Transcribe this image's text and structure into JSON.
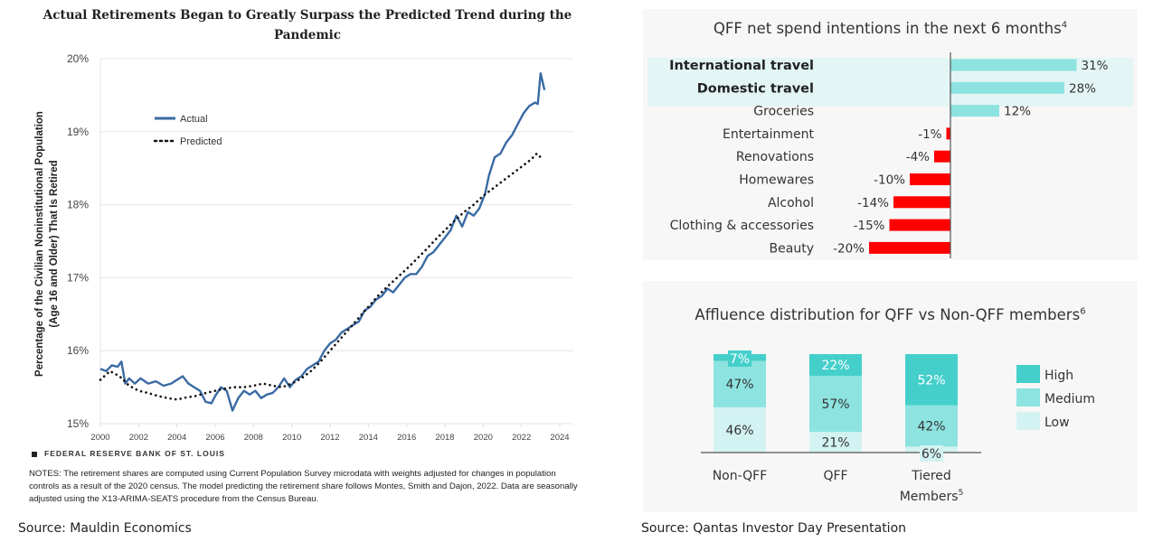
{
  "left_panel": {
    "title": "Actual Retirements Began to Greatly Surpass the Predicted Trend during the Pandemic",
    "ylabel_line1": "Percentage of the Civilian Noninstitutional Population",
    "ylabel_line2": "(Age 16 and Older) That Is Retired",
    "attribution": "FEDERAL RESERVE BANK OF ST. LOUIS",
    "notes": "NOTES: The retirement shares are computed using Current Population Survey microdata with weights adjusted for changes in population controls as a result of the 2020 census. The model predicting the retirement share follows Montes, Smith and Dajon, 2022. Data are seasonally adjusted using the X13-ARIMA-SEATS procedure from the Census Bureau.",
    "source": "Source:  Mauldin Economics"
  },
  "right_panel": {
    "source": "Source:  Qantas Investor Day Presentation"
  },
  "colors": {
    "actual_line": "#3a6aa3",
    "predicted_line": "#111111",
    "positive_bar": "#8de3e0",
    "negative_bar": "#ff0000",
    "highlight_band": "#e3f5f5",
    "high": "#45cfcb",
    "medium": "#8de3e0",
    "low": "#d3f3f2",
    "panel_bg": "#f7f7f7"
  },
  "chart_data": [
    {
      "type": "line",
      "title": "Actual Retirements Began to Greatly Surpass the Predicted Trend during the Pandemic",
      "xlabel": "",
      "ylabel": "Percentage of the Civilian Noninstitutional Population (Age 16 and Older) That Is Retired",
      "xlim": [
        2000,
        2024
      ],
      "ylim": [
        15,
        20
      ],
      "xticks": [
        "2000",
        "2002",
        "2004",
        "2006",
        "2008",
        "2010",
        "2012",
        "2014",
        "2016",
        "2018",
        "2020",
        "2022",
        "2024"
      ],
      "yticks": [
        "15%",
        "16%",
        "17%",
        "18%",
        "19%",
        "20%"
      ],
      "grid": "horizontal",
      "legend": {
        "position": "top-left",
        "entries": [
          "Actual",
          "Predicted"
        ]
      },
      "series": [
        {
          "name": "Actual",
          "style": "solid",
          "x": [
            2000.0,
            2000.3,
            2000.6,
            2000.9,
            2001.1,
            2001.3,
            2001.5,
            2001.8,
            2002.1,
            2002.5,
            2002.9,
            2003.3,
            2003.7,
            2004.0,
            2004.3,
            2004.6,
            2004.9,
            2005.2,
            2005.5,
            2005.8,
            2006.0,
            2006.3,
            2006.6,
            2006.9,
            2007.2,
            2007.5,
            2007.8,
            2008.1,
            2008.4,
            2008.7,
            2009.0,
            2009.3,
            2009.6,
            2009.9,
            2010.2,
            2010.5,
            2010.8,
            2011.1,
            2011.4,
            2011.7,
            2012.0,
            2012.3,
            2012.6,
            2012.9,
            2013.2,
            2013.5,
            2013.8,
            2014.1,
            2014.4,
            2014.7,
            2015.0,
            2015.3,
            2015.6,
            2015.9,
            2016.2,
            2016.5,
            2016.8,
            2017.1,
            2017.4,
            2017.7,
            2018.0,
            2018.3,
            2018.6,
            2018.9,
            2019.2,
            2019.5,
            2019.8,
            2020.1,
            2020.3,
            2020.6,
            2020.9,
            2021.2,
            2021.5,
            2021.8,
            2022.1,
            2022.4,
            2022.7,
            2022.85,
            2023.0,
            2023.2
          ],
          "y": [
            15.75,
            15.72,
            15.8,
            15.78,
            15.85,
            15.55,
            15.62,
            15.55,
            15.62,
            15.55,
            15.58,
            15.52,
            15.55,
            15.6,
            15.65,
            15.55,
            15.5,
            15.45,
            15.3,
            15.28,
            15.38,
            15.5,
            15.45,
            15.18,
            15.35,
            15.45,
            15.4,
            15.45,
            15.35,
            15.4,
            15.42,
            15.5,
            15.62,
            15.5,
            15.6,
            15.65,
            15.75,
            15.8,
            15.85,
            16.0,
            16.1,
            16.15,
            16.25,
            16.3,
            16.35,
            16.4,
            16.55,
            16.6,
            16.7,
            16.75,
            16.85,
            16.8,
            16.9,
            17.0,
            17.05,
            17.05,
            17.15,
            17.3,
            17.35,
            17.45,
            17.55,
            17.65,
            17.85,
            17.7,
            17.9,
            17.85,
            17.95,
            18.15,
            18.4,
            18.65,
            18.7,
            18.85,
            18.95,
            19.1,
            19.25,
            19.35,
            19.4,
            19.38,
            19.8,
            19.57
          ]
        },
        {
          "name": "Predicted",
          "style": "dotted",
          "x": [
            2000.0,
            2000.5,
            2001.0,
            2001.5,
            2002.0,
            2002.5,
            2003.0,
            2003.5,
            2004.0,
            2004.5,
            2005.0,
            2005.5,
            2006.0,
            2006.5,
            2007.0,
            2007.5,
            2008.0,
            2008.5,
            2009.0,
            2009.5,
            2010.0,
            2010.5,
            2011.0,
            2011.5,
            2012.0,
            2012.5,
            2013.0,
            2013.5,
            2014.0,
            2014.5,
            2015.0,
            2015.5,
            2016.0,
            2016.5,
            2017.0,
            2017.5,
            2018.0,
            2018.5,
            2019.0,
            2019.5,
            2020.0,
            2020.5,
            2021.0,
            2021.5,
            2022.0,
            2022.5,
            2022.8,
            2023.0
          ],
          "y": [
            15.6,
            15.72,
            15.65,
            15.52,
            15.45,
            15.42,
            15.38,
            15.35,
            15.33,
            15.36,
            15.38,
            15.42,
            15.45,
            15.48,
            15.5,
            15.5,
            15.52,
            15.55,
            15.52,
            15.5,
            15.55,
            15.62,
            15.72,
            15.85,
            16.0,
            16.15,
            16.3,
            16.45,
            16.6,
            16.75,
            16.88,
            17.0,
            17.12,
            17.25,
            17.38,
            17.52,
            17.65,
            17.78,
            17.9,
            18.0,
            18.12,
            18.22,
            18.32,
            18.42,
            18.52,
            18.62,
            18.7,
            18.65
          ]
        }
      ]
    },
    {
      "type": "bar",
      "orientation": "horizontal",
      "title": "QFF net spend intentions in the next 6 months",
      "title_superscript": "4",
      "categories": [
        "International travel",
        "Domestic travel",
        "Groceries",
        "Entertainment",
        "Renovations",
        "Homewares",
        "Alcohol",
        "Clothing & accessories",
        "Beauty"
      ],
      "values": [
        31,
        28,
        12,
        -1,
        -4,
        -10,
        -14,
        -15,
        -20
      ],
      "value_labels": [
        "31%",
        "28%",
        "12%",
        "-1%",
        "-4%",
        "-10%",
        "-14%",
        "-15%",
        "-20%"
      ],
      "highlighted": [
        "International travel",
        "Domestic travel"
      ],
      "xlim": [
        -25,
        35
      ]
    },
    {
      "type": "bar",
      "stacked": true,
      "title": "Affluence distribution for QFF vs Non-QFF members",
      "title_superscript": "6",
      "categories": [
        "Non-QFF",
        "QFF",
        "Tiered Members"
      ],
      "category_superscripts": [
        "",
        "",
        "5"
      ],
      "legend": {
        "position": "right",
        "entries": [
          "High",
          "Medium",
          "Low"
        ]
      },
      "series": [
        {
          "name": "Low",
          "values": [
            46,
            21,
            6
          ],
          "labels": [
            "46%",
            "21%",
            "6%"
          ]
        },
        {
          "name": "Medium",
          "values": [
            47,
            57,
            42
          ],
          "labels": [
            "47%",
            "57%",
            "42%"
          ]
        },
        {
          "name": "High",
          "values": [
            7,
            22,
            52
          ],
          "labels": [
            "7%",
            "22%",
            "52%"
          ]
        }
      ],
      "ylim": [
        0,
        100
      ]
    }
  ]
}
